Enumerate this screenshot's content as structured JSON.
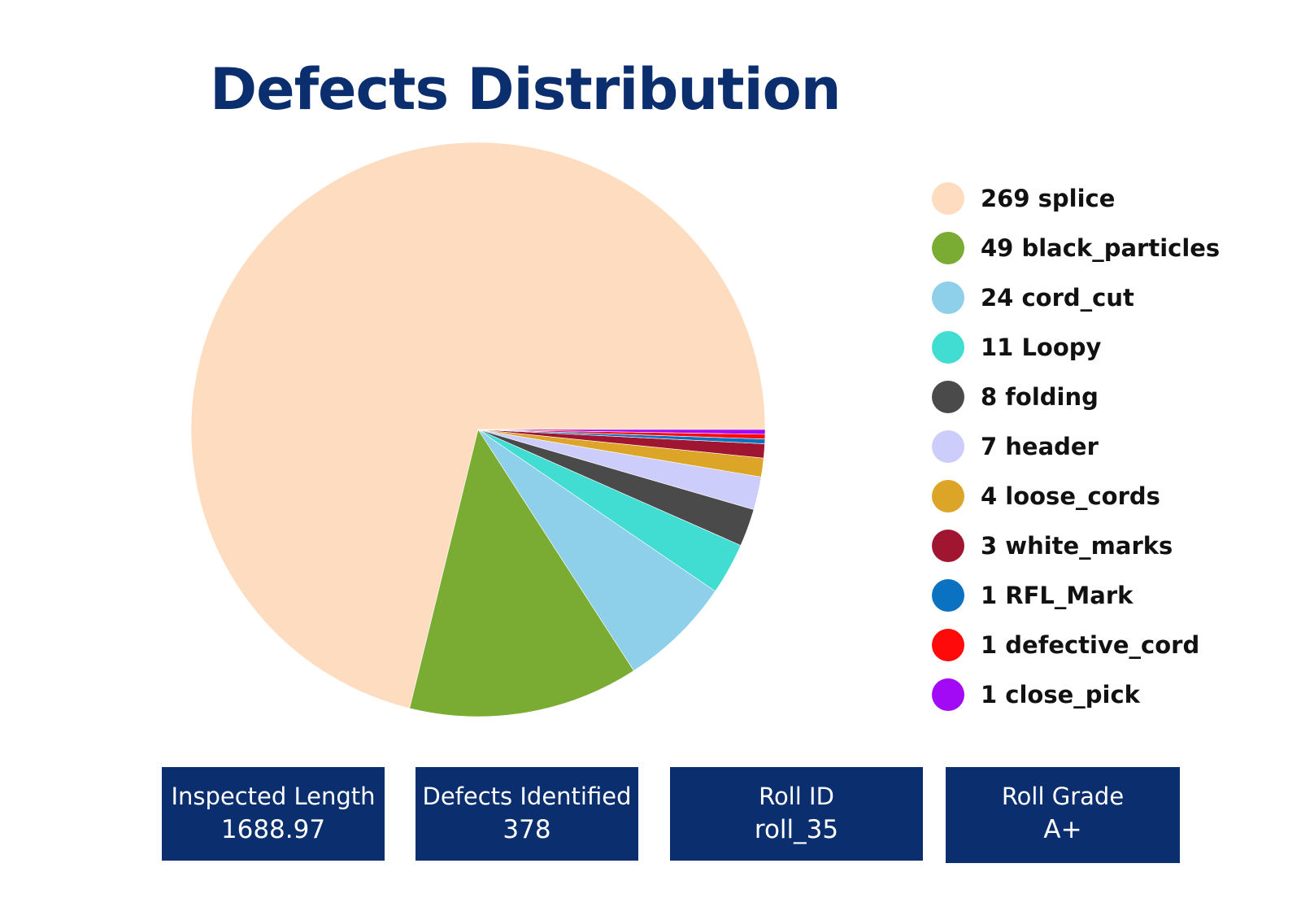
{
  "chart_data": {
    "type": "pie",
    "title": "Defects Distribution",
    "slices": [
      {
        "label": "splice",
        "value": 269,
        "color": "#fddcbf"
      },
      {
        "label": "black_particles",
        "value": 49,
        "color": "#7aab32"
      },
      {
        "label": "cord_cut",
        "value": 24,
        "color": "#8ecfea"
      },
      {
        "label": "Loopy",
        "value": 11,
        "color": "#41ddd2"
      },
      {
        "label": "folding",
        "value": 8,
        "color": "#4a4a4a"
      },
      {
        "label": "header",
        "value": 7,
        "color": "#cccdfb"
      },
      {
        "label": "loose_cords",
        "value": 4,
        "color": "#dca528"
      },
      {
        "label": "white_marks",
        "value": 3,
        "color": "#a0152f"
      },
      {
        "label": "RFL_Mark",
        "value": 1,
        "color": "#0a72c0"
      },
      {
        "label": "defective_cord",
        "value": 1,
        "color": "#ff0a0a"
      },
      {
        "label": "close_pick",
        "value": 1,
        "color": "#a20af5"
      }
    ],
    "legend_position": "right",
    "start_angle": "3 o'clock, counter-clockwise"
  },
  "legend": [
    "269 splice",
    "49 black_particles",
    "24 cord_cut",
    "11 Loopy",
    "8 folding",
    "7 header",
    "4 loose_cords",
    "3 white_marks",
    "1 RFL_Mark",
    "1 defective_cord",
    "1 close_pick"
  ],
  "stats": {
    "inspected_length": {
      "label": "Inspected Length",
      "value": "1688.97"
    },
    "defects_identified": {
      "label": "Defects Identified",
      "value": "378"
    },
    "roll_id": {
      "label": "Roll ID",
      "value": "roll_35"
    },
    "roll_grade": {
      "label": "Roll Grade",
      "value": "A+"
    }
  },
  "colors": {
    "title": "#0b2e6e",
    "card_background": "#0b2e6e",
    "card_text": "#ffffff"
  }
}
